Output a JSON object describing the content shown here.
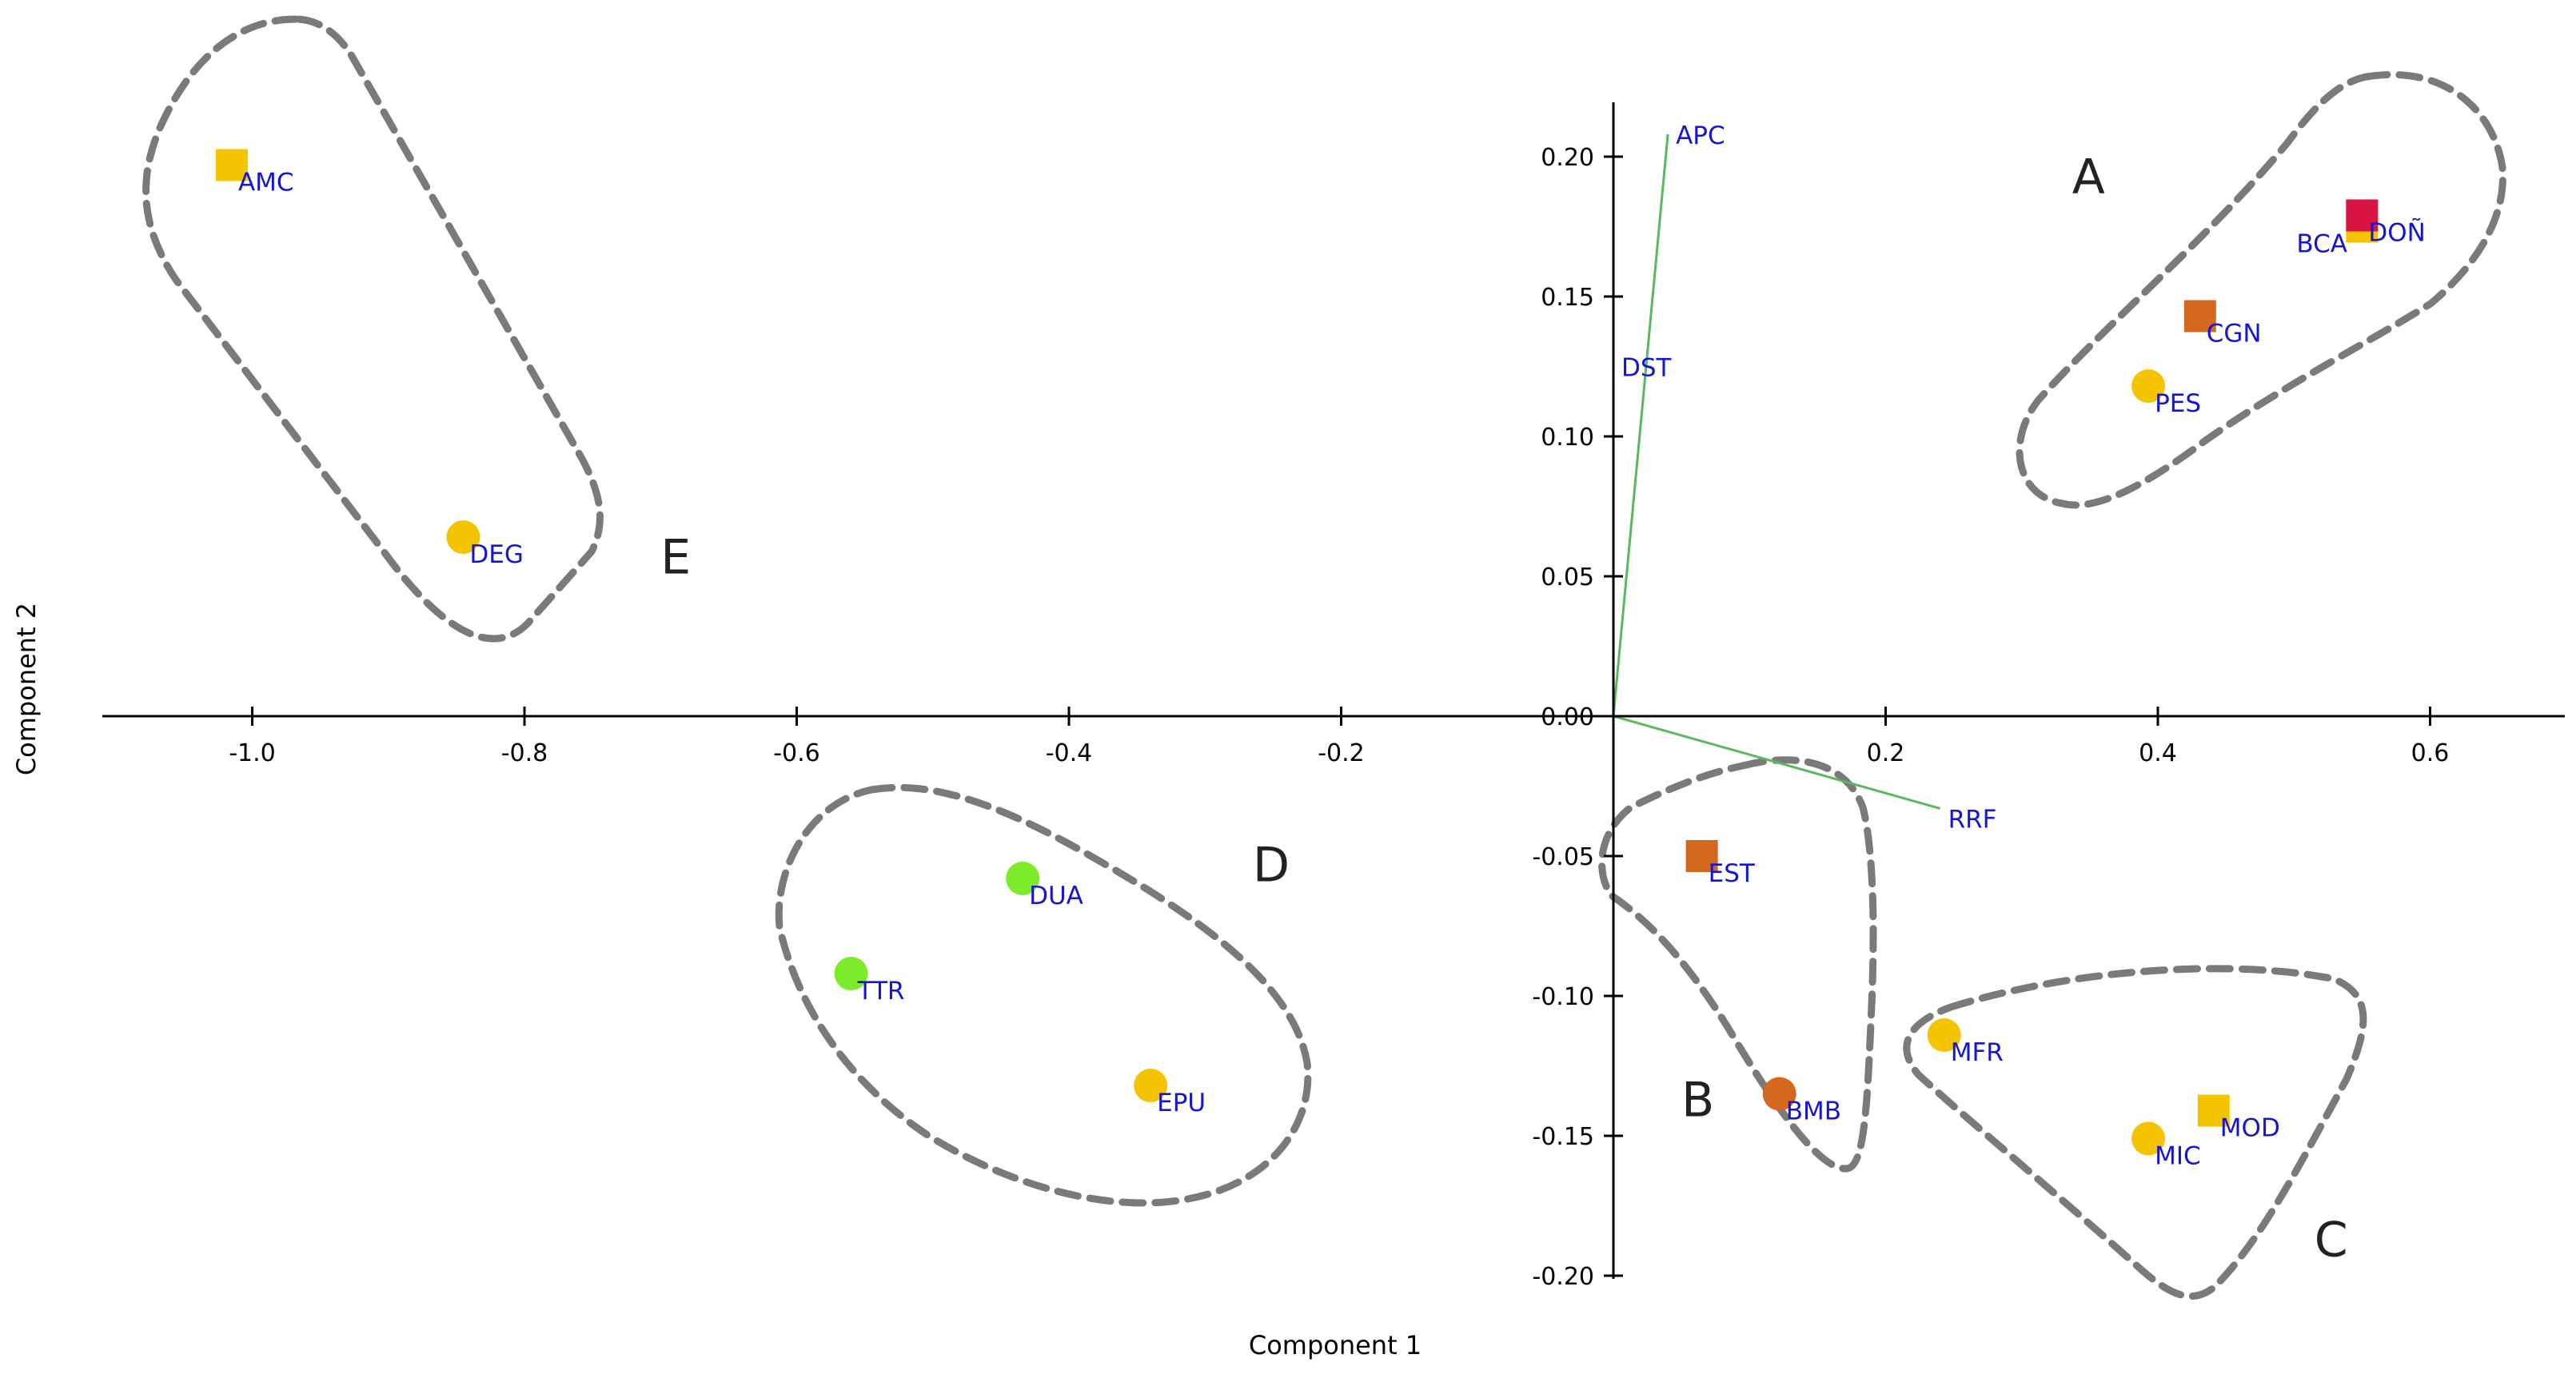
{
  "chart_data": {
    "type": "scatter",
    "xlabel": "Component 1",
    "ylabel": "Component 2",
    "xlim": [
      -1.12,
      0.7
    ],
    "ylim": [
      -0.205,
      0.22
    ],
    "x_ticks": [
      {
        "value": -1.0,
        "label": "-1.0"
      },
      {
        "value": -0.8,
        "label": "-0.8"
      },
      {
        "value": -0.6,
        "label": "-0.6"
      },
      {
        "value": -0.4,
        "label": "-0.4"
      },
      {
        "value": -0.2,
        "label": "-0.2"
      },
      {
        "value": 0.2,
        "label": "0.2"
      },
      {
        "value": 0.4,
        "label": "0.4"
      },
      {
        "value": 0.6,
        "label": "0.6"
      }
    ],
    "y_ticks": [
      {
        "value": 0.2,
        "label": "0.20"
      },
      {
        "value": 0.15,
        "label": "0.15"
      },
      {
        "value": 0.1,
        "label": "0.10"
      },
      {
        "value": 0.05,
        "label": "0.05"
      },
      {
        "value": 0.0,
        "label": "0.00"
      },
      {
        "value": -0.05,
        "label": "-0.05"
      },
      {
        "value": -0.1,
        "label": "-0.10"
      },
      {
        "value": -0.15,
        "label": "-0.15"
      },
      {
        "value": -0.2,
        "label": "-0.20"
      }
    ],
    "grid": false,
    "points": [
      {
        "label": "AMC",
        "x": -1.015,
        "y": 0.197,
        "shape": "square",
        "color": "#F5C400"
      },
      {
        "label": "DEG",
        "x": -0.845,
        "y": 0.064,
        "shape": "circle",
        "color": "#F5C400"
      },
      {
        "label": "BCA",
        "x": 0.55,
        "y": 0.175,
        "shape": "square",
        "color": "#F5C400"
      },
      {
        "label": "DOÑ",
        "x": 0.55,
        "y": 0.179,
        "shape": "square",
        "color": "#D91444"
      },
      {
        "label": "CGN",
        "x": 0.431,
        "y": 0.143,
        "shape": "square",
        "color": "#D2691E"
      },
      {
        "label": "PES",
        "x": 0.393,
        "y": 0.118,
        "shape": "circle",
        "color": "#F5C400"
      },
      {
        "label": "EST",
        "x": 0.065,
        "y": -0.05,
        "shape": "square",
        "color": "#D2691E"
      },
      {
        "label": "BMB",
        "x": 0.122,
        "y": -0.135,
        "shape": "circle",
        "color": "#D2691E"
      },
      {
        "label": "MFR",
        "x": 0.243,
        "y": -0.114,
        "shape": "circle",
        "color": "#F5C400"
      },
      {
        "label": "MIC",
        "x": 0.393,
        "y": -0.151,
        "shape": "circle",
        "color": "#F5C400"
      },
      {
        "label": "MOD",
        "x": 0.441,
        "y": -0.141,
        "shape": "square",
        "color": "#F5C400"
      },
      {
        "label": "DUA",
        "x": -0.434,
        "y": -0.058,
        "shape": "circle",
        "color": "#7CEB2A"
      },
      {
        "label": "TTR",
        "x": -0.56,
        "y": -0.092,
        "shape": "circle",
        "color": "#7CEB2A"
      },
      {
        "label": "EPU",
        "x": -0.34,
        "y": -0.132,
        "shape": "circle",
        "color": "#F5C400"
      }
    ],
    "vectors": [
      {
        "label": "APC",
        "x": 0.04,
        "y": 0.208
      },
      {
        "label": "DST",
        "x": 0.0,
        "y": 0.125
      },
      {
        "label": "RRF",
        "x": 0.24,
        "y": -0.033
      }
    ],
    "groups": [
      {
        "label": "A",
        "x": 0.337,
        "y": 0.187
      },
      {
        "label": "B",
        "x": 0.05,
        "y": -0.143
      },
      {
        "label": "C",
        "x": 0.515,
        "y": -0.193
      },
      {
        "label": "D",
        "x": -0.265,
        "y": -0.059
      },
      {
        "label": "E",
        "x": -0.7,
        "y": 0.051
      }
    ],
    "colors": {
      "vector": "#5CB85C",
      "label_text": "#1515D6",
      "axis": "#000000",
      "hull": "#7A7A7A"
    }
  }
}
